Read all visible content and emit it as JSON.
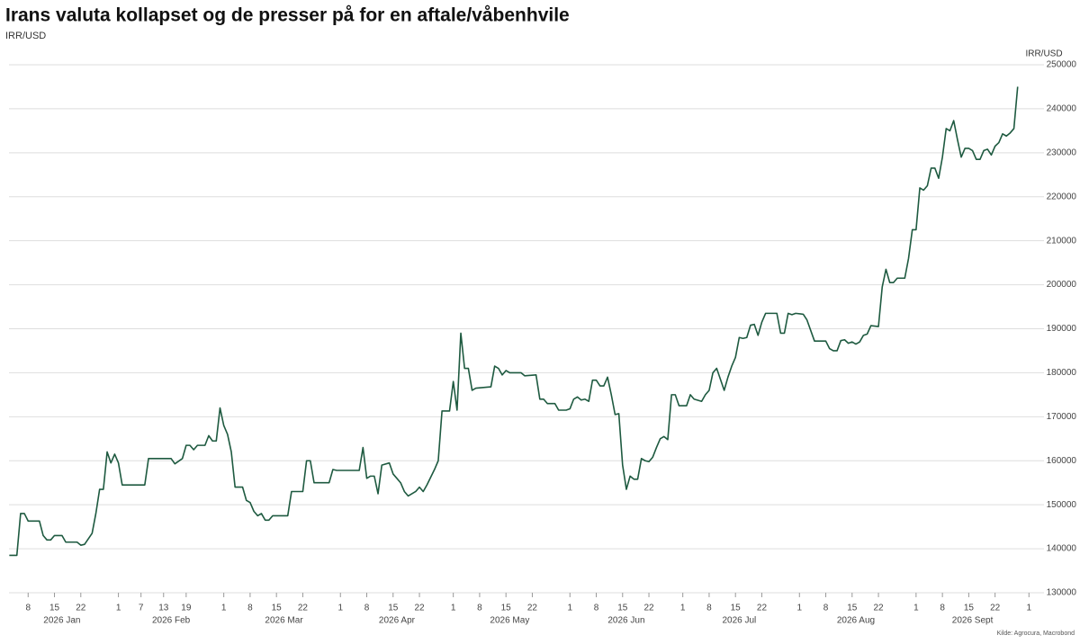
{
  "chart_data": {
    "type": "line",
    "title": "Irans valuta kollapset og de presser på for en aftale/våbenhvile",
    "subtitle": "IRR/USD",
    "y_axis_label": "IRR/USD",
    "source": "Kilde: Agrocura, Macrobond",
    "color": "#1e5a40",
    "grid": true,
    "xlim": [
      "2026-01-01",
      "2026-10-05"
    ],
    "ylim": [
      130000,
      250000
    ],
    "yticks": [
      130000,
      140000,
      150000,
      160000,
      170000,
      180000,
      190000,
      200000,
      210000,
      220000,
      230000,
      240000,
      250000
    ],
    "xticks": [
      {
        "value": "2026-01-08",
        "label": "8"
      },
      {
        "value": "2026-01-15",
        "label": "15"
      },
      {
        "value": "2026-01-22",
        "label": "22"
      },
      {
        "value": "2026-02-01",
        "label": "1"
      },
      {
        "value": "2026-02-07",
        "label": "7"
      },
      {
        "value": "2026-02-13",
        "label": "13"
      },
      {
        "value": "2026-02-19",
        "label": "19"
      },
      {
        "value": "2026-03-01",
        "label": "1"
      },
      {
        "value": "2026-03-08",
        "label": "8"
      },
      {
        "value": "2026-03-15",
        "label": "15"
      },
      {
        "value": "2026-03-22",
        "label": "22"
      },
      {
        "value": "2026-04-01",
        "label": "1"
      },
      {
        "value": "2026-04-08",
        "label": "8"
      },
      {
        "value": "2026-04-15",
        "label": "15"
      },
      {
        "value": "2026-04-22",
        "label": "22"
      },
      {
        "value": "2026-05-01",
        "label": "1"
      },
      {
        "value": "2026-05-08",
        "label": "8"
      },
      {
        "value": "2026-05-15",
        "label": "15"
      },
      {
        "value": "2026-05-22",
        "label": "22"
      },
      {
        "value": "2026-06-01",
        "label": "1"
      },
      {
        "value": "2026-06-08",
        "label": "8"
      },
      {
        "value": "2026-06-15",
        "label": "15"
      },
      {
        "value": "2026-06-22",
        "label": "22"
      },
      {
        "value": "2026-07-01",
        "label": "1"
      },
      {
        "value": "2026-07-08",
        "label": "8"
      },
      {
        "value": "2026-07-15",
        "label": "15"
      },
      {
        "value": "2026-07-22",
        "label": "22"
      },
      {
        "value": "2026-08-01",
        "label": "1"
      },
      {
        "value": "2026-08-08",
        "label": "8"
      },
      {
        "value": "2026-08-15",
        "label": "15"
      },
      {
        "value": "2026-08-22",
        "label": "22"
      },
      {
        "value": "2026-09-01",
        "label": "1"
      },
      {
        "value": "2026-09-08",
        "label": "8"
      },
      {
        "value": "2026-09-15",
        "label": "15"
      },
      {
        "value": "2026-09-22",
        "label": "22"
      },
      {
        "value": "2026-10-01",
        "label": "1"
      }
    ],
    "x_period_labels": [
      {
        "value": "2026-01-17",
        "label": "2026 Jan"
      },
      {
        "value": "2026-02-15",
        "label": "2026 Feb"
      },
      {
        "value": "2026-03-17",
        "label": "2026 Mar"
      },
      {
        "value": "2026-04-16",
        "label": "2026 Apr"
      },
      {
        "value": "2026-05-16",
        "label": "2026 May"
      },
      {
        "value": "2026-06-16",
        "label": "2026 Jun"
      },
      {
        "value": "2026-07-16",
        "label": "2026 Jul"
      },
      {
        "value": "2026-08-16",
        "label": "2026 Aug"
      },
      {
        "value": "2026-09-16",
        "label": "2026 Sept"
      }
    ],
    "x": [
      "2026-01-03",
      "2026-01-05",
      "2026-01-06",
      "2026-01-07",
      "2026-01-08",
      "2026-01-11",
      "2026-01-12",
      "2026-01-13",
      "2026-01-14",
      "2026-01-15",
      "2026-01-17",
      "2026-01-18",
      "2026-01-21",
      "2026-01-22",
      "2026-01-23",
      "2026-01-25",
      "2026-01-26",
      "2026-01-27",
      "2026-01-28",
      "2026-01-29",
      "2026-01-30",
      "2026-01-31",
      "2026-02-01",
      "2026-02-02",
      "2026-02-08",
      "2026-02-09",
      "2026-02-15",
      "2026-02-16",
      "2026-02-18",
      "2026-02-19",
      "2026-02-20",
      "2026-02-21",
      "2026-02-22",
      "2026-02-24",
      "2026-02-25",
      "2026-02-26",
      "2026-02-27",
      "2026-02-28",
      "2026-03-01",
      "2026-03-02",
      "2026-03-03",
      "2026-03-04",
      "2026-03-06",
      "2026-03-07",
      "2026-03-08",
      "2026-03-09",
      "2026-03-10",
      "2026-03-11",
      "2026-03-12",
      "2026-03-13",
      "2026-03-14",
      "2026-03-18",
      "2026-03-19",
      "2026-03-22",
      "2026-03-23",
      "2026-03-24",
      "2026-03-25",
      "2026-03-29",
      "2026-03-30",
      "2026-03-31",
      "2026-04-06",
      "2026-04-07",
      "2026-04-08",
      "2026-04-09",
      "2026-04-10",
      "2026-04-11",
      "2026-04-12",
      "2026-04-14",
      "2026-04-15",
      "2026-04-16",
      "2026-04-17",
      "2026-04-18",
      "2026-04-19",
      "2026-04-20",
      "2026-04-21",
      "2026-04-22",
      "2026-04-23",
      "2026-04-24",
      "2026-04-26",
      "2026-04-27",
      "2026-04-28",
      "2026-04-30",
      "2026-05-01",
      "2026-05-02",
      "2026-05-03",
      "2026-05-04",
      "2026-05-05",
      "2026-05-06",
      "2026-05-07",
      "2026-05-11",
      "2026-05-12",
      "2026-05-13",
      "2026-05-14",
      "2026-05-15",
      "2026-05-16",
      "2026-05-19",
      "2026-05-20",
      "2026-05-23",
      "2026-05-24",
      "2026-05-25",
      "2026-05-26",
      "2026-05-28",
      "2026-05-29",
      "2026-05-30",
      "2026-05-31",
      "2026-06-01",
      "2026-06-02",
      "2026-06-03",
      "2026-06-04",
      "2026-06-05",
      "2026-06-06",
      "2026-06-07",
      "2026-06-08",
      "2026-06-09",
      "2026-06-10",
      "2026-06-11",
      "2026-06-12",
      "2026-06-13",
      "2026-06-14",
      "2026-06-15",
      "2026-06-16",
      "2026-06-17",
      "2026-06-18",
      "2026-06-19",
      "2026-06-20",
      "2026-06-21",
      "2026-06-22",
      "2026-06-23",
      "2026-06-24",
      "2026-06-25",
      "2026-06-26",
      "2026-06-27",
      "2026-06-28",
      "2026-06-29",
      "2026-06-30",
      "2026-07-02",
      "2026-07-03",
      "2026-07-04",
      "2026-07-06",
      "2026-07-07",
      "2026-07-08",
      "2026-07-09",
      "2026-07-10",
      "2026-07-11",
      "2026-07-12",
      "2026-07-13",
      "2026-07-14",
      "2026-07-15",
      "2026-07-16",
      "2026-07-17",
      "2026-07-18",
      "2026-07-19",
      "2026-07-20",
      "2026-07-21",
      "2026-07-22",
      "2026-07-23",
      "2026-07-26",
      "2026-07-27",
      "2026-07-28",
      "2026-07-29",
      "2026-07-30",
      "2026-07-31",
      "2026-08-02",
      "2026-08-03",
      "2026-08-05",
      "2026-08-08",
      "2026-08-09",
      "2026-08-10",
      "2026-08-11",
      "2026-08-12",
      "2026-08-13",
      "2026-08-14",
      "2026-08-15",
      "2026-08-16",
      "2026-08-17",
      "2026-08-18",
      "2026-08-19",
      "2026-08-20",
      "2026-08-22",
      "2026-08-23",
      "2026-08-24",
      "2026-08-25",
      "2026-08-26",
      "2026-08-27",
      "2026-08-29",
      "2026-08-30",
      "2026-08-31",
      "2026-09-01",
      "2026-09-02",
      "2026-09-03",
      "2026-09-04",
      "2026-09-05",
      "2026-09-06",
      "2026-09-07",
      "2026-09-08",
      "2026-09-09",
      "2026-09-10",
      "2026-09-11",
      "2026-09-12",
      "2026-09-13",
      "2026-09-14",
      "2026-09-15",
      "2026-09-16",
      "2026-09-17",
      "2026-09-18",
      "2026-09-19",
      "2026-09-20",
      "2026-09-21",
      "2026-09-22",
      "2026-09-23",
      "2026-09-24",
      "2026-09-25",
      "2026-09-26",
      "2026-09-27",
      "2026-09-28"
    ],
    "values": [
      138500,
      138500,
      148000,
      148000,
      146300,
      146300,
      143000,
      142000,
      142000,
      143000,
      143000,
      141500,
      141500,
      140800,
      141000,
      143500,
      148000,
      153500,
      153500,
      162000,
      159500,
      161500,
      159500,
      154500,
      154500,
      160500,
      160500,
      159300,
      160500,
      163500,
      163500,
      162500,
      163500,
      163500,
      165700,
      164500,
      164500,
      172000,
      168000,
      166000,
      162000,
      154000,
      154000,
      151000,
      150500,
      148500,
      147500,
      148000,
      146500,
      146500,
      147500,
      147500,
      153000,
      153000,
      160000,
      160000,
      155000,
      155000,
      158000,
      157800,
      157800,
      163000,
      156000,
      156500,
      156500,
      152500,
      159000,
      159500,
      157000,
      156000,
      155000,
      153000,
      152000,
      152500,
      153000,
      154000,
      153000,
      154500,
      158000,
      160000,
      171300,
      171300,
      178000,
      171500,
      189000,
      181000,
      181000,
      176000,
      176500,
      176800,
      181500,
      181000,
      179500,
      180500,
      180000,
      180000,
      179300,
      179500,
      174000,
      174000,
      173000,
      173000,
      171500,
      171500,
      171500,
      171800,
      174000,
      174500,
      173800,
      174000,
      173500,
      178300,
      178300,
      177000,
      177000,
      179000,
      175000,
      170500,
      170700,
      159000,
      153500,
      156500,
      155800,
      155800,
      160500,
      160000,
      159800,
      160800,
      163000,
      165000,
      165500,
      164800,
      175000,
      175000,
      172500,
      172500,
      175000,
      174000,
      173500,
      175000,
      176000,
      180000,
      181000,
      178500,
      176000,
      179000,
      181500,
      183500,
      188000,
      187800,
      188000,
      190800,
      191000,
      188500,
      191500,
      193500,
      193500,
      189000,
      189000,
      193500,
      193200,
      193500,
      193300,
      192000,
      187200,
      187200,
      185500,
      185000,
      185000,
      187300,
      187500,
      186700,
      187000,
      186500,
      187000,
      188500,
      188800,
      190700,
      190500,
      199500,
      203500,
      200500,
      200500,
      201500,
      201500,
      206000,
      212500,
      212500,
      222000,
      221500,
      222500,
      226500,
      226500,
      224200,
      229000,
      235500,
      235000,
      237300,
      233000,
      229000,
      231000,
      231000,
      230500,
      228500,
      228500,
      230500,
      230800,
      229500,
      231500,
      232300,
      234300,
      233800,
      234500,
      235500,
      245000
    ]
  }
}
